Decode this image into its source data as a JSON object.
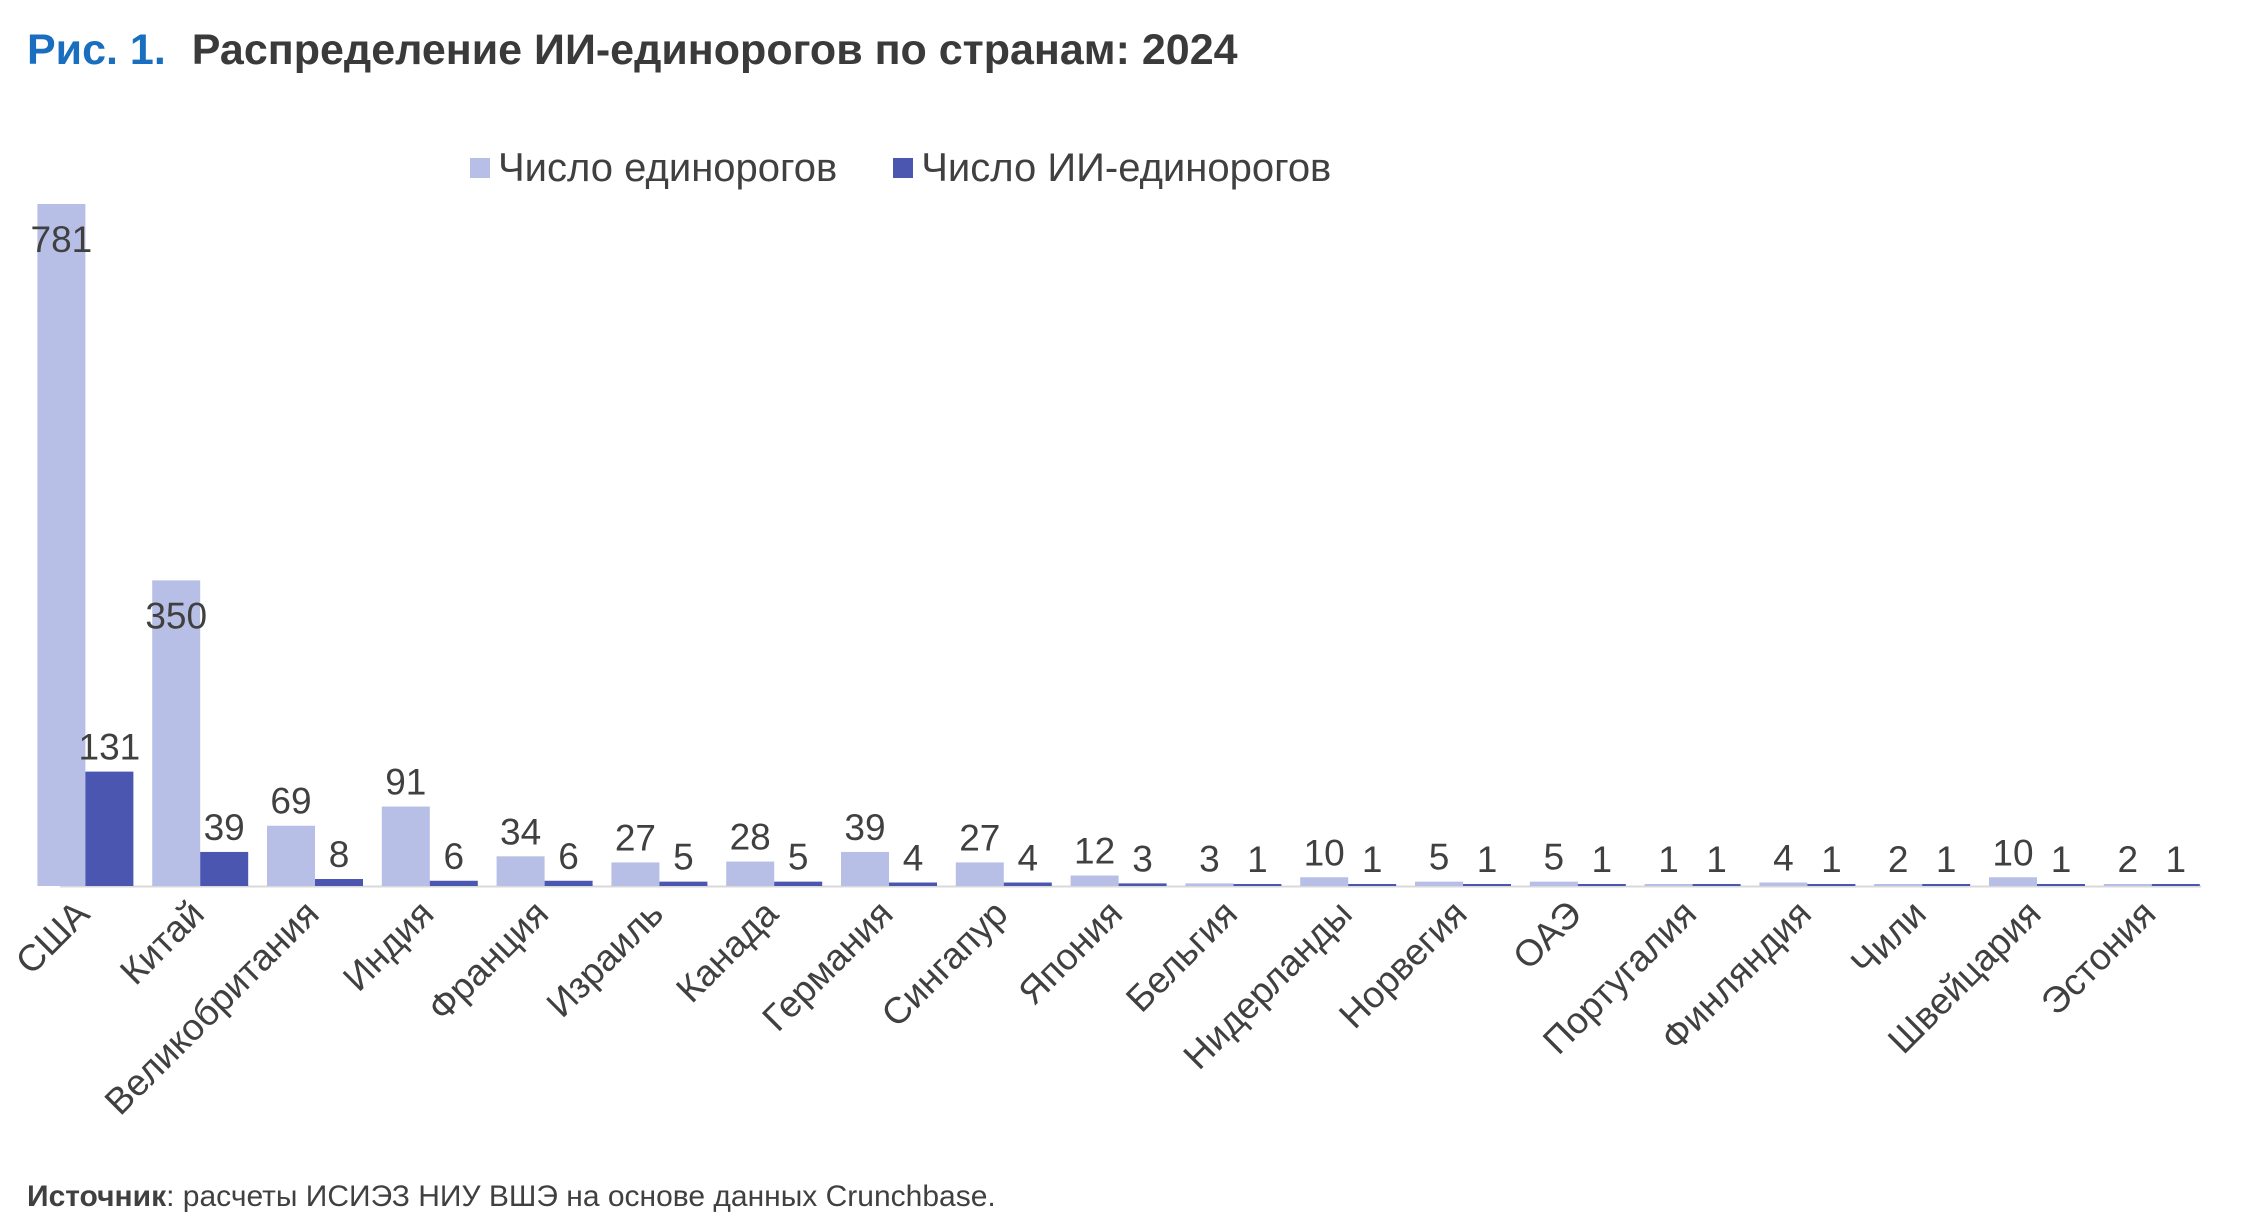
{
  "figure": {
    "number": "Рис. 1.",
    "title": "Распределение ИИ-единорогов по странам: 2024"
  },
  "source": {
    "label": "Источник",
    "text": ": расчеты ИСИЭЗ НИУ ВШЭ на основе данных Crunchbase."
  },
  "colors": {
    "series1": "#b8bfe6",
    "series2": "#4b56b1"
  },
  "chart_data": {
    "type": "bar",
    "title": "Распределение ИИ-единорогов по странам: 2024",
    "legend_position": "top",
    "grid": false,
    "ylim": [
      0,
      781
    ],
    "categories": [
      "США",
      "Китай",
      "Великобритания",
      "Индия",
      "Франция",
      "Израиль",
      "Канада",
      "Германия",
      "Сингапур",
      "Япония",
      "Бельгия",
      "Нидерланды",
      "Норвегия",
      "ОАЭ",
      "Португалия",
      "Финляндия",
      "Чили",
      "Швейцария",
      "Эстония"
    ],
    "series": [
      {
        "name": "Число единорогов",
        "values": [
          781,
          350,
          69,
          91,
          34,
          27,
          28,
          39,
          27,
          12,
          3,
          10,
          5,
          5,
          1,
          4,
          2,
          10,
          2
        ]
      },
      {
        "name": "Число ИИ-единорогов",
        "values": [
          131,
          39,
          8,
          6,
          6,
          5,
          5,
          4,
          4,
          3,
          1,
          1,
          1,
          1,
          1,
          1,
          1,
          1,
          1
        ]
      }
    ]
  }
}
